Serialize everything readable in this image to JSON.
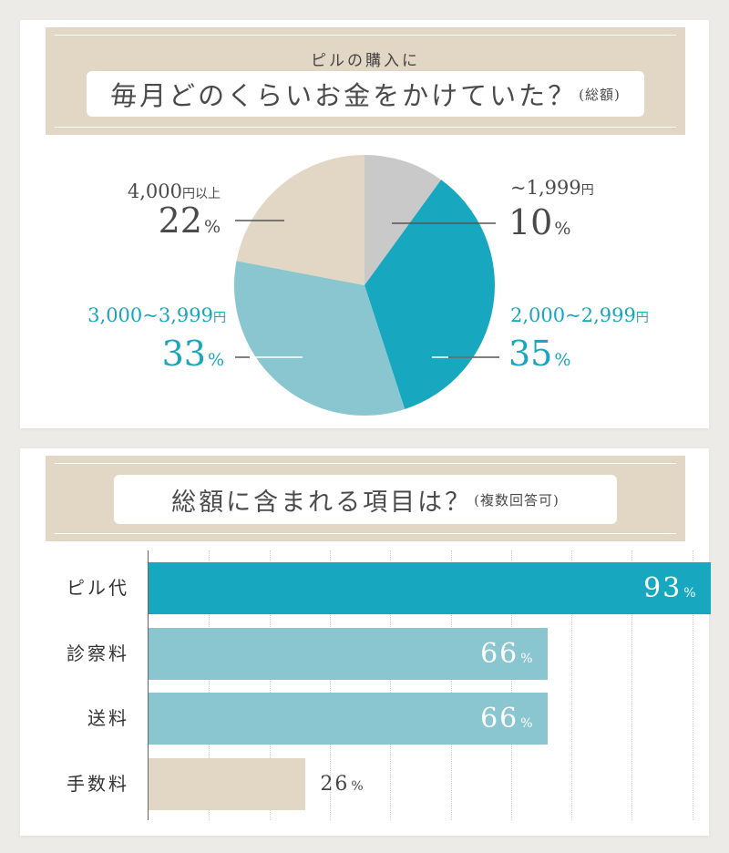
{
  "chart_data": [
    {
      "type": "pie",
      "title_kicker": "ピルの購入に",
      "title_main": "毎月どのくらいお金をかけていた？",
      "title_note": "(総額)",
      "slices": [
        {
          "label_num": "~1,999",
          "unit": "円",
          "value": 10,
          "pct_unit": "%",
          "color": "#c9c9c9",
          "text_color": "#4a4a4a"
        },
        {
          "label_num": "2,000~2,999",
          "unit": "円",
          "value": 35,
          "pct_unit": "%",
          "color": "#17a7bf",
          "text_color": "#1aa5bd"
        },
        {
          "label_num": "3,000~3,999",
          "unit": "円",
          "value": 33,
          "pct_unit": "%",
          "color": "#8ac6cf",
          "text_color": "#1aa5bd"
        },
        {
          "label_num": "4,000",
          "unit": "円以上",
          "value": 22,
          "pct_unit": "%",
          "color": "#e2d6c4",
          "text_color": "#4a4a4a"
        }
      ]
    },
    {
      "type": "bar",
      "orientation": "horizontal",
      "title_main": "総額に含まれる項目は？",
      "title_note": "(複数回答可)",
      "categories": [
        "ピル代",
        "診察料",
        "送料",
        "手数料"
      ],
      "values": [
        93,
        66,
        66,
        26
      ],
      "unit": "%",
      "colors": [
        "#17a7bf",
        "#8ac6cf",
        "#8ac6cf",
        "#e2d6c4"
      ],
      "xlim": [
        0,
        100
      ],
      "grid": true
    }
  ]
}
